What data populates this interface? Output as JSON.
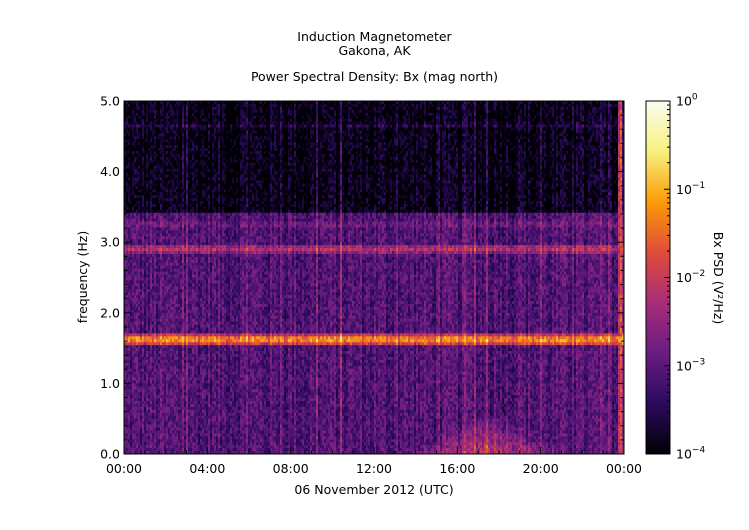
{
  "header": {
    "line1": "Induction Magnetometer",
    "line2": "Gakona, AK",
    "line3": "Power Spectral Density: Bx (mag north)"
  },
  "chart_data": {
    "type": "heatmap",
    "title": "Induction Magnetometer",
    "subtitle": "Gakona, AK",
    "plot_title": "Power Spectral Density: Bx (mag north)",
    "xlabel": "06 November 2012 (UTC)",
    "ylabel": "frequency (Hz)",
    "colorbar_label": "Bx PSD (V²/Hz)",
    "x_range": [
      "00:00",
      "24:00"
    ],
    "x_ticks": [
      "00:00",
      "04:00",
      "08:00",
      "12:00",
      "16:00",
      "20:00",
      "00:00"
    ],
    "y_range": [
      0.0,
      5.0
    ],
    "y_ticks": [
      "0.0",
      "1.0",
      "2.0",
      "3.0",
      "4.0",
      "5.0"
    ],
    "color_scale": "log",
    "colorbar_range": [
      0.0001,
      1
    ],
    "colorbar_ticks": [
      {
        "base": "10",
        "exp": "0"
      },
      {
        "base": "10",
        "exp": "−1"
      },
      {
        "base": "10",
        "exp": "−2"
      },
      {
        "base": "10",
        "exp": "−3"
      },
      {
        "base": "10",
        "exp": "−4"
      }
    ],
    "colormap": [
      "#000004",
      "#2b0a5e",
      "#6a1c81",
      "#a72d78",
      "#e04c3a",
      "#fb9b06",
      "#f6f17d",
      "#fcfdf2"
    ],
    "features": [
      {
        "name": "band",
        "freq_hz": 1.62,
        "level_log10": -1.3
      },
      {
        "name": "band",
        "freq_hz": 2.9,
        "level_log10": -2.2
      },
      {
        "name": "band",
        "freq_hz": 3.25,
        "level_log10": -2.8
      },
      {
        "name": "band",
        "freq_hz": 4.65,
        "level_log10": -3.6
      },
      {
        "name": "background",
        "freq_hz": [
          0.0,
          3.4
        ],
        "level_log10": -3.1
      },
      {
        "name": "background",
        "freq_hz": [
          3.4,
          5.0
        ],
        "level_log10": -3.9
      },
      {
        "name": "low-frequency enhancement",
        "time_utc": [
          "13:00",
          "22:00"
        ],
        "freq_hz": [
          0.0,
          0.5
        ],
        "level_log10": -2.0
      },
      {
        "name": "broadband spike",
        "time_utc": "23:50",
        "freq_hz": [
          0.0,
          5.0
        ],
        "level_log10": -2.2
      }
    ]
  }
}
